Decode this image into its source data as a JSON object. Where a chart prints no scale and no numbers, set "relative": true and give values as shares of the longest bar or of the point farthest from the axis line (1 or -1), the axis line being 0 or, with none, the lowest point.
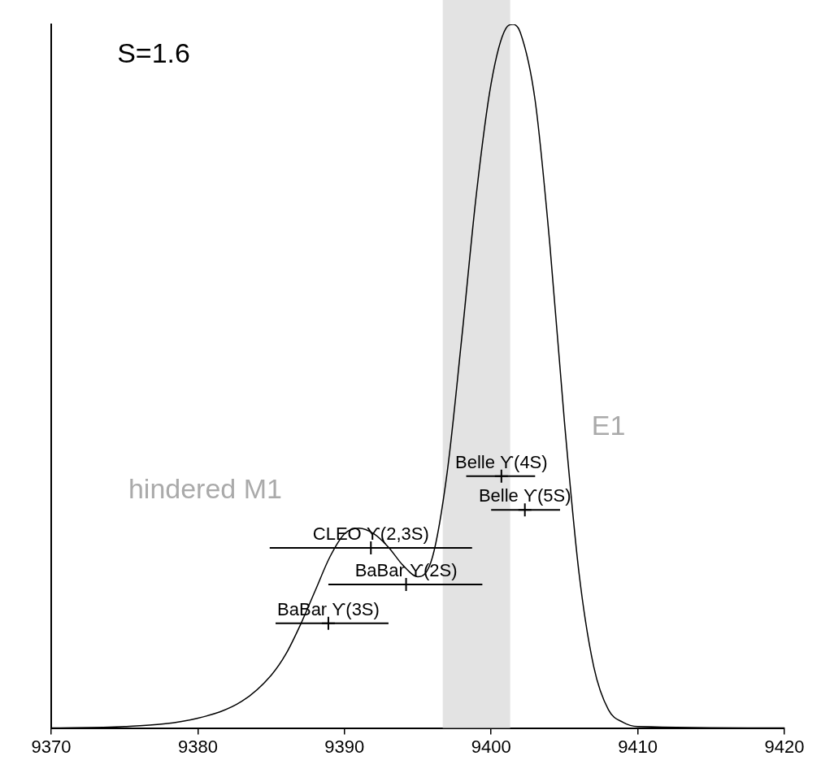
{
  "chart_data": {
    "type": "line",
    "relative": true,
    "xlim": [
      9370,
      9420
    ],
    "xticks": [
      9370,
      9380,
      9390,
      9400,
      9410,
      9420
    ],
    "bands": [
      {
        "axis": "x",
        "from": 9396.7,
        "to": 9401.3,
        "color": "#e3e3e3"
      }
    ],
    "annotations": [
      "S=1.6",
      "E1",
      "hindered M1"
    ],
    "series": [
      {
        "color": "#000000",
        "x": [
          9370,
          9375,
          9380,
          9383,
          9385,
          9386,
          9387,
          9388,
          9389,
          9390,
          9391,
          9392,
          9393,
          9394,
          9395,
          9396,
          9397,
          9398,
          9399,
          9400,
          9401,
          9401.5,
          9402,
          9403,
          9404,
          9405,
          9406,
          9407,
          9408,
          9409,
          9410,
          9420
        ],
        "values": [
          0,
          0.002,
          0.014,
          0.038,
          0.075,
          0.105,
          0.147,
          0.195,
          0.243,
          0.276,
          0.284,
          0.276,
          0.257,
          0.231,
          0.215,
          0.243,
          0.363,
          0.555,
          0.76,
          0.916,
          0.994,
          1,
          0.988,
          0.892,
          0.688,
          0.435,
          0.219,
          0.087,
          0.026,
          0.008,
          0.002,
          0
        ]
      },
      {
        "type": "scatter",
        "name": "Belle ϒ(4S)",
        "color": "#000000",
        "marker": "cross",
        "x": [
          9400.7
        ],
        "values": [
          0.358
        ],
        "xerrors": [
          [
            9398.3,
            9403.0
          ]
        ]
      },
      {
        "type": "scatter",
        "name": "Belle ϒ(5S)",
        "color": "#000000",
        "marker": "cross",
        "x": [
          9402.3
        ],
        "values": [
          0.31
        ],
        "xerrors": [
          [
            9400.0,
            9404.7
          ]
        ]
      },
      {
        "type": "scatter",
        "name": "CLEO ϒ(2,3S)",
        "color": "#000000",
        "marker": "cross",
        "x": [
          9391.8
        ],
        "values": [
          0.256
        ],
        "xerrors": [
          [
            9384.9,
            9398.7
          ]
        ]
      },
      {
        "type": "scatter",
        "name": "BaBar ϒ(2S)",
        "color": "#000000",
        "marker": "cross",
        "x": [
          9394.2
        ],
        "values": [
          0.204
        ],
        "xerrors": [
          [
            9388.9,
            9399.4
          ]
        ]
      },
      {
        "type": "scatter",
        "name": "BaBar ϒ(3S)",
        "color": "#000000",
        "marker": "cross",
        "x": [
          9388.9
        ],
        "values": [
          0.149
        ],
        "xerrors": [
          [
            9385.3,
            9393.0
          ]
        ]
      }
    ]
  }
}
